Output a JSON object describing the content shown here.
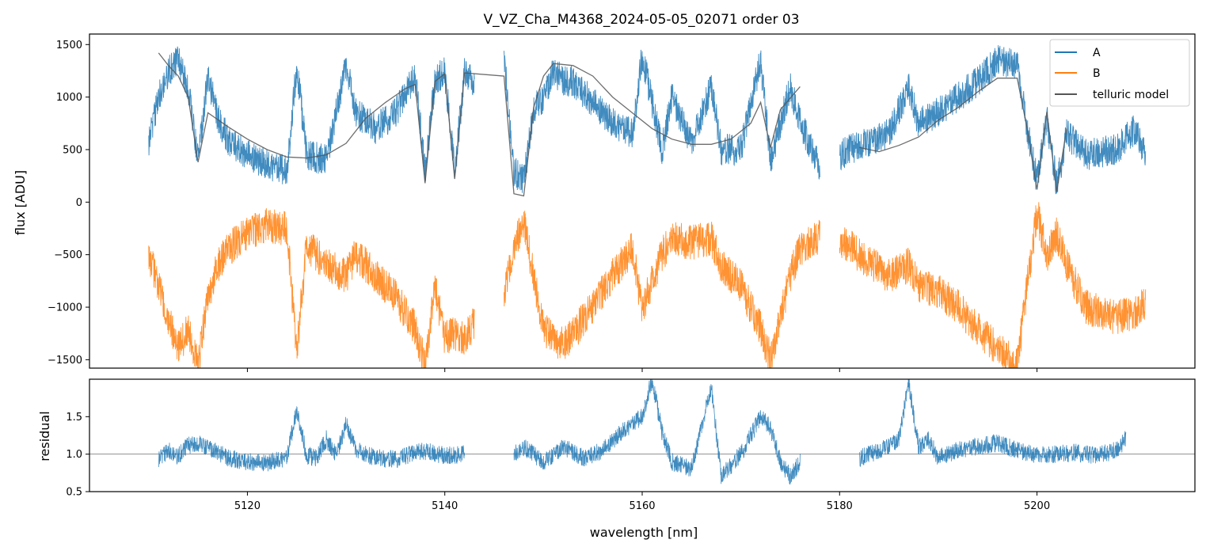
{
  "chart_data": [
    {
      "type": "line",
      "title": "V_VZ_Cha_M4368_2024-05-05_02071  order 03",
      "xlabel": "",
      "ylabel": "flux [ADU]",
      "xlim": [
        5104,
        5216
      ],
      "ylim": [
        -1580,
        1600
      ],
      "yticks": [
        -1500,
        -1000,
        -500,
        0,
        500,
        1000,
        1500
      ],
      "ytick_labels": [
        "−1500",
        "−1000",
        "−500",
        "0",
        "500",
        "1000",
        "1500"
      ],
      "xticks": [
        5120,
        5140,
        5160,
        5180,
        5200
      ],
      "legend": {
        "location": "top-right",
        "entries": [
          "A",
          "B",
          "telluric model"
        ]
      },
      "segments": [
        [
          5110,
          5143
        ],
        [
          5146,
          5178
        ],
        [
          5180,
          5211
        ]
      ],
      "series": [
        {
          "name": "A",
          "color": "#1f77b4",
          "points": [
            [
              5110,
              550
            ],
            [
              5111,
              1000
            ],
            [
              5112,
              1250
            ],
            [
              5113,
              1350
            ],
            [
              5114,
              1100
            ],
            [
              5115,
              420
            ],
            [
              5116,
              1200
            ],
            [
              5117,
              800
            ],
            [
              5118,
              600
            ],
            [
              5120,
              450
            ],
            [
              5122,
              350
            ],
            [
              5124,
              300
            ],
            [
              5125,
              1300
            ],
            [
              5126,
              450
            ],
            [
              5128,
              400
            ],
            [
              5130,
              1300
            ],
            [
              5131,
              850
            ],
            [
              5133,
              700
            ],
            [
              5135,
              850
            ],
            [
              5137,
              1200
            ],
            [
              5138,
              300
            ],
            [
              5139,
              1150
            ],
            [
              5140,
              1250
            ],
            [
              5141,
              280
            ],
            [
              5142,
              1250
            ],
            [
              5143,
              1150
            ],
            [
              5146,
              1400
            ],
            [
              5147,
              300
            ],
            [
              5148,
              200
            ],
            [
              5149,
              900
            ],
            [
              5150,
              1000
            ],
            [
              5151,
              1250
            ],
            [
              5152,
              1150
            ],
            [
              5153,
              1150
            ],
            [
              5155,
              950
            ],
            [
              5157,
              750
            ],
            [
              5159,
              650
            ],
            [
              5160,
              1400
            ],
            [
              5162,
              500
            ],
            [
              5163,
              1000
            ],
            [
              5165,
              550
            ],
            [
              5167,
              1100
            ],
            [
              5168,
              500
            ],
            [
              5170,
              500
            ],
            [
              5172,
              1350
            ],
            [
              5173,
              400
            ],
            [
              5175,
              1100
            ],
            [
              5176,
              750
            ],
            [
              5177,
              550
            ],
            [
              5178,
              350
            ],
            [
              5180,
              450
            ],
            [
              5182,
              550
            ],
            [
              5185,
              650
            ],
            [
              5187,
              1100
            ],
            [
              5188,
              750
            ],
            [
              5190,
              850
            ],
            [
              5192,
              1000
            ],
            [
              5194,
              1150
            ],
            [
              5196,
              1350
            ],
            [
              5198,
              1300
            ],
            [
              5199,
              700
            ],
            [
              5200,
              200
            ],
            [
              5201,
              800
            ],
            [
              5202,
              150
            ],
            [
              5203,
              650
            ],
            [
              5205,
              450
            ],
            [
              5208,
              500
            ],
            [
              5210,
              700
            ],
            [
              5211,
              450
            ]
          ]
        },
        {
          "name": "B",
          "color": "#ff7f0e",
          "points": [
            [
              5110,
              -500
            ],
            [
              5111,
              -800
            ],
            [
              5112,
              -1100
            ],
            [
              5113,
              -1400
            ],
            [
              5114,
              -1200
            ],
            [
              5115,
              -1550
            ],
            [
              5116,
              -900
            ],
            [
              5117,
              -600
            ],
            [
              5118,
              -450
            ],
            [
              5120,
              -300
            ],
            [
              5122,
              -220
            ],
            [
              5124,
              -260
            ],
            [
              5125,
              -1400
            ],
            [
              5126,
              -400
            ],
            [
              5128,
              -600
            ],
            [
              5130,
              -700
            ],
            [
              5131,
              -500
            ],
            [
              5133,
              -700
            ],
            [
              5135,
              -900
            ],
            [
              5137,
              -1200
            ],
            [
              5138,
              -1550
            ],
            [
              5139,
              -800
            ],
            [
              5140,
              -1300
            ],
            [
              5141,
              -1250
            ],
            [
              5142,
              -1300
            ],
            [
              5143,
              -1150
            ],
            [
              5146,
              -900
            ],
            [
              5147,
              -400
            ],
            [
              5148,
              -200
            ],
            [
              5149,
              -700
            ],
            [
              5150,
              -1200
            ],
            [
              5151,
              -1300
            ],
            [
              5152,
              -1350
            ],
            [
              5153,
              -1250
            ],
            [
              5155,
              -1000
            ],
            [
              5157,
              -700
            ],
            [
              5159,
              -450
            ],
            [
              5160,
              -1000
            ],
            [
              5162,
              -500
            ],
            [
              5163,
              -350
            ],
            [
              5165,
              -380
            ],
            [
              5167,
              -350
            ],
            [
              5168,
              -600
            ],
            [
              5170,
              -800
            ],
            [
              5172,
              -1200
            ],
            [
              5173,
              -1500
            ],
            [
              5175,
              -700
            ],
            [
              5176,
              -450
            ],
            [
              5177,
              -380
            ],
            [
              5178,
              -330
            ],
            [
              5180,
              -350
            ],
            [
              5182,
              -500
            ],
            [
              5185,
              -700
            ],
            [
              5187,
              -600
            ],
            [
              5188,
              -800
            ],
            [
              5190,
              -850
            ],
            [
              5192,
              -1000
            ],
            [
              5194,
              -1200
            ],
            [
              5196,
              -1400
            ],
            [
              5198,
              -1550
            ],
            [
              5199,
              -800
            ],
            [
              5200,
              -100
            ],
            [
              5201,
              -500
            ],
            [
              5202,
              -300
            ],
            [
              5203,
              -600
            ],
            [
              5205,
              -1000
            ],
            [
              5208,
              -1100
            ],
            [
              5210,
              -1050
            ],
            [
              5211,
              -950
            ]
          ]
        },
        {
          "name": "telluric model",
          "color": "#555555",
          "points": [
            [
              5111,
              1420
            ],
            [
              5112,
              1300
            ],
            [
              5113,
              1200
            ],
            [
              5114,
              1000
            ],
            [
              5115,
              380
            ],
            [
              5116,
              850
            ],
            [
              5118,
              720
            ],
            [
              5120,
              600
            ],
            [
              5122,
              500
            ],
            [
              5124,
              430
            ],
            [
              5126,
              420
            ],
            [
              5128,
              450
            ],
            [
              5130,
              560
            ],
            [
              5132,
              800
            ],
            [
              5134,
              950
            ],
            [
              5136,
              1080
            ],
            [
              5137,
              1120
            ],
            [
              5138,
              180
            ],
            [
              5139,
              1150
            ],
            [
              5140,
              1220
            ],
            [
              5141,
              220
            ],
            [
              5142,
              1230
            ],
            [
              5146,
              1200
            ],
            [
              5147,
              80
            ],
            [
              5148,
              60
            ],
            [
              5149,
              900
            ],
            [
              5150,
              1200
            ],
            [
              5151,
              1320
            ],
            [
              5153,
              1300
            ],
            [
              5155,
              1200
            ],
            [
              5157,
              1000
            ],
            [
              5159,
              850
            ],
            [
              5161,
              700
            ],
            [
              5163,
              600
            ],
            [
              5165,
              550
            ],
            [
              5167,
              550
            ],
            [
              5169,
              600
            ],
            [
              5171,
              750
            ],
            [
              5172,
              950
            ],
            [
              5173,
              520
            ],
            [
              5174,
              880
            ],
            [
              5176,
              1100
            ],
            [
              5182,
              520
            ],
            [
              5184,
              480
            ],
            [
              5186,
              540
            ],
            [
              5188,
              620
            ],
            [
              5190,
              780
            ],
            [
              5192,
              900
            ],
            [
              5194,
              1050
            ],
            [
              5196,
              1180
            ],
            [
              5198,
              1180
            ],
            [
              5199,
              700
            ],
            [
              5200,
              120
            ],
            [
              5201,
              860
            ],
            [
              5202,
              100
            ],
            [
              5203,
              700
            ]
          ]
        }
      ]
    },
    {
      "type": "line",
      "title": "",
      "xlabel": "wavelength [nm]",
      "ylabel": "residual",
      "xlim": [
        5104,
        5216
      ],
      "ylim": [
        0.5,
        2.0
      ],
      "yticks": [
        0.5,
        1.0,
        1.5
      ],
      "ytick_labels": [
        "0.5",
        "1.0",
        "1.5"
      ],
      "xticks": [
        5120,
        5140,
        5160,
        5180,
        5200
      ],
      "xtick_labels": [
        "5120",
        "5140",
        "5160",
        "5180",
        "5200"
      ],
      "reference_line": 1.0,
      "segments": [
        [
          5111,
          5142
        ],
        [
          5147,
          5176
        ],
        [
          5182,
          5209
        ]
      ],
      "series": [
        {
          "name": "residual",
          "color": "#1f77b4",
          "points": [
            [
              5111,
              0.92
            ],
            [
              5112,
              1.05
            ],
            [
              5113,
              0.98
            ],
            [
              5114,
              1.12
            ],
            [
              5115,
              1.15
            ],
            [
              5116,
              1.1
            ],
            [
              5118,
              0.95
            ],
            [
              5120,
              0.9
            ],
            [
              5122,
              0.88
            ],
            [
              5124,
              0.95
            ],
            [
              5125,
              1.6
            ],
            [
              5126,
              0.98
            ],
            [
              5127,
              0.95
            ],
            [
              5128,
              1.2
            ],
            [
              5129,
              0.98
            ],
            [
              5130,
              1.4
            ],
            [
              5131,
              1.05
            ],
            [
              5133,
              0.95
            ],
            [
              5135,
              0.93
            ],
            [
              5137,
              1.02
            ],
            [
              5138,
              1.04
            ],
            [
              5140,
              0.98
            ],
            [
              5142,
              1.0
            ],
            [
              5147,
              1.0
            ],
            [
              5148,
              1.1
            ],
            [
              5150,
              0.9
            ],
            [
              5152,
              1.1
            ],
            [
              5154,
              0.95
            ],
            [
              5156,
              1.05
            ],
            [
              5158,
              1.3
            ],
            [
              5160,
              1.5
            ],
            [
              5161,
              2.0
            ],
            [
              5162,
              1.3
            ],
            [
              5163,
              0.9
            ],
            [
              5165,
              0.8
            ],
            [
              5167,
              1.9
            ],
            [
              5168,
              0.7
            ],
            [
              5170,
              1.0
            ],
            [
              5172,
              1.5
            ],
            [
              5173,
              1.35
            ],
            [
              5174,
              0.9
            ],
            [
              5175,
              0.7
            ],
            [
              5176,
              0.9
            ],
            [
              5182,
              0.95
            ],
            [
              5184,
              1.05
            ],
            [
              5186,
              1.2
            ],
            [
              5187,
              1.95
            ],
            [
              5188,
              1.1
            ],
            [
              5189,
              1.2
            ],
            [
              5190,
              0.95
            ],
            [
              5192,
              1.05
            ],
            [
              5194,
              1.1
            ],
            [
              5196,
              1.15
            ],
            [
              5198,
              1.05
            ],
            [
              5200,
              0.98
            ],
            [
              5202,
              1.0
            ],
            [
              5204,
              1.02
            ],
            [
              5206,
              0.98
            ],
            [
              5208,
              1.05
            ],
            [
              5209,
              1.2
            ]
          ]
        }
      ]
    }
  ]
}
